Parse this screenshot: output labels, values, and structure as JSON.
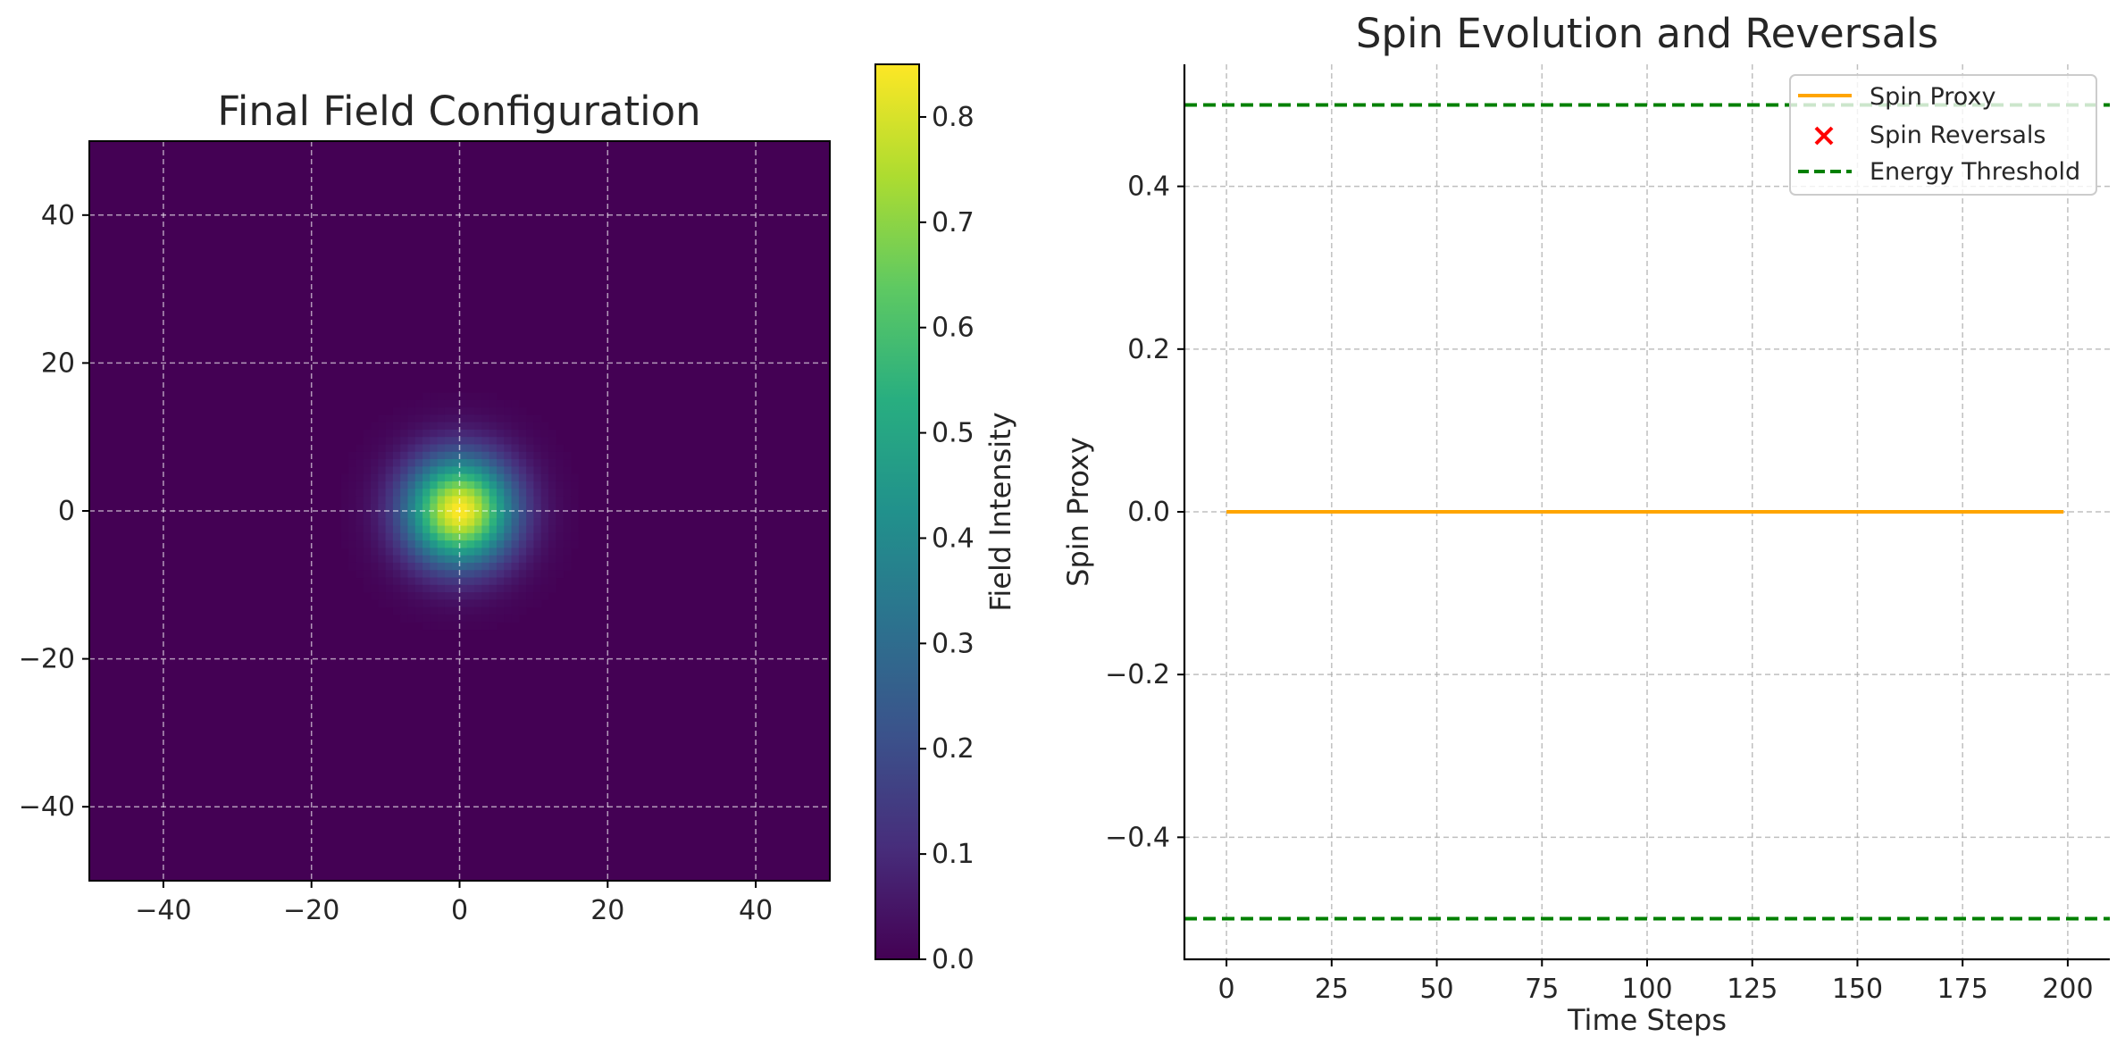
{
  "chart_data": [
    {
      "type": "heatmap",
      "title": "Final Field Configuration",
      "xlabel": "",
      "ylabel": "",
      "xlim": [
        -50,
        50
      ],
      "ylim": [
        -50,
        50
      ],
      "x_ticks": [
        -40,
        -20,
        0,
        20,
        40
      ],
      "y_ticks": [
        40,
        20,
        0,
        -20,
        -40
      ],
      "x_tick_labels": [
        "−40",
        "−20",
        "0",
        "20",
        "40"
      ],
      "y_tick_labels": [
        "40",
        "20",
        "0",
        "−20",
        "−40"
      ],
      "field": {
        "shape": "gaussian",
        "center": [
          0,
          0
        ],
        "peak": 0.85,
        "sigma": 5
      },
      "grid": true,
      "colormap": "viridis",
      "colorbar": {
        "label": "Field Intensity",
        "range": [
          0.0,
          0.85
        ],
        "ticks": [
          0.0,
          0.1,
          0.2,
          0.3,
          0.4,
          0.5,
          0.6,
          0.7,
          0.8
        ],
        "tick_labels": [
          "0.0",
          "0.1",
          "0.2",
          "0.3",
          "0.4",
          "0.5",
          "0.6",
          "0.7",
          "0.8"
        ]
      }
    },
    {
      "type": "line",
      "title": "Spin Evolution and Reversals",
      "xlabel": "Time Steps",
      "ylabel": "Spin Proxy",
      "xlim": [
        -10,
        210
      ],
      "ylim": [
        -0.55,
        0.55
      ],
      "x_ticks": [
        0,
        25,
        50,
        75,
        100,
        125,
        150,
        175,
        200
      ],
      "x_tick_labels": [
        "0",
        "25",
        "50",
        "75",
        "100",
        "125",
        "150",
        "175",
        "200"
      ],
      "y_ticks": [
        0.4,
        0.2,
        0.0,
        -0.2,
        -0.4
      ],
      "y_tick_labels": [
        "0.4",
        "0.2",
        "0.0",
        "−0.2",
        "−0.4"
      ],
      "grid": true,
      "series": [
        {
          "name": "Spin Proxy",
          "color": "#ffa500",
          "x": [
            0,
            199
          ],
          "y": [
            0.0,
            0.0
          ]
        }
      ],
      "reversals": {
        "name": "Spin Reversals",
        "color": "#ff0000",
        "points": []
      },
      "thresholds": {
        "name": "Energy Threshold",
        "color": "#008000",
        "values": [
          0.5,
          -0.5
        ]
      },
      "legend": {
        "placement": "top-right",
        "entries": [
          "Spin Proxy",
          "Spin Reversals",
          "Energy Threshold"
        ]
      }
    }
  ]
}
